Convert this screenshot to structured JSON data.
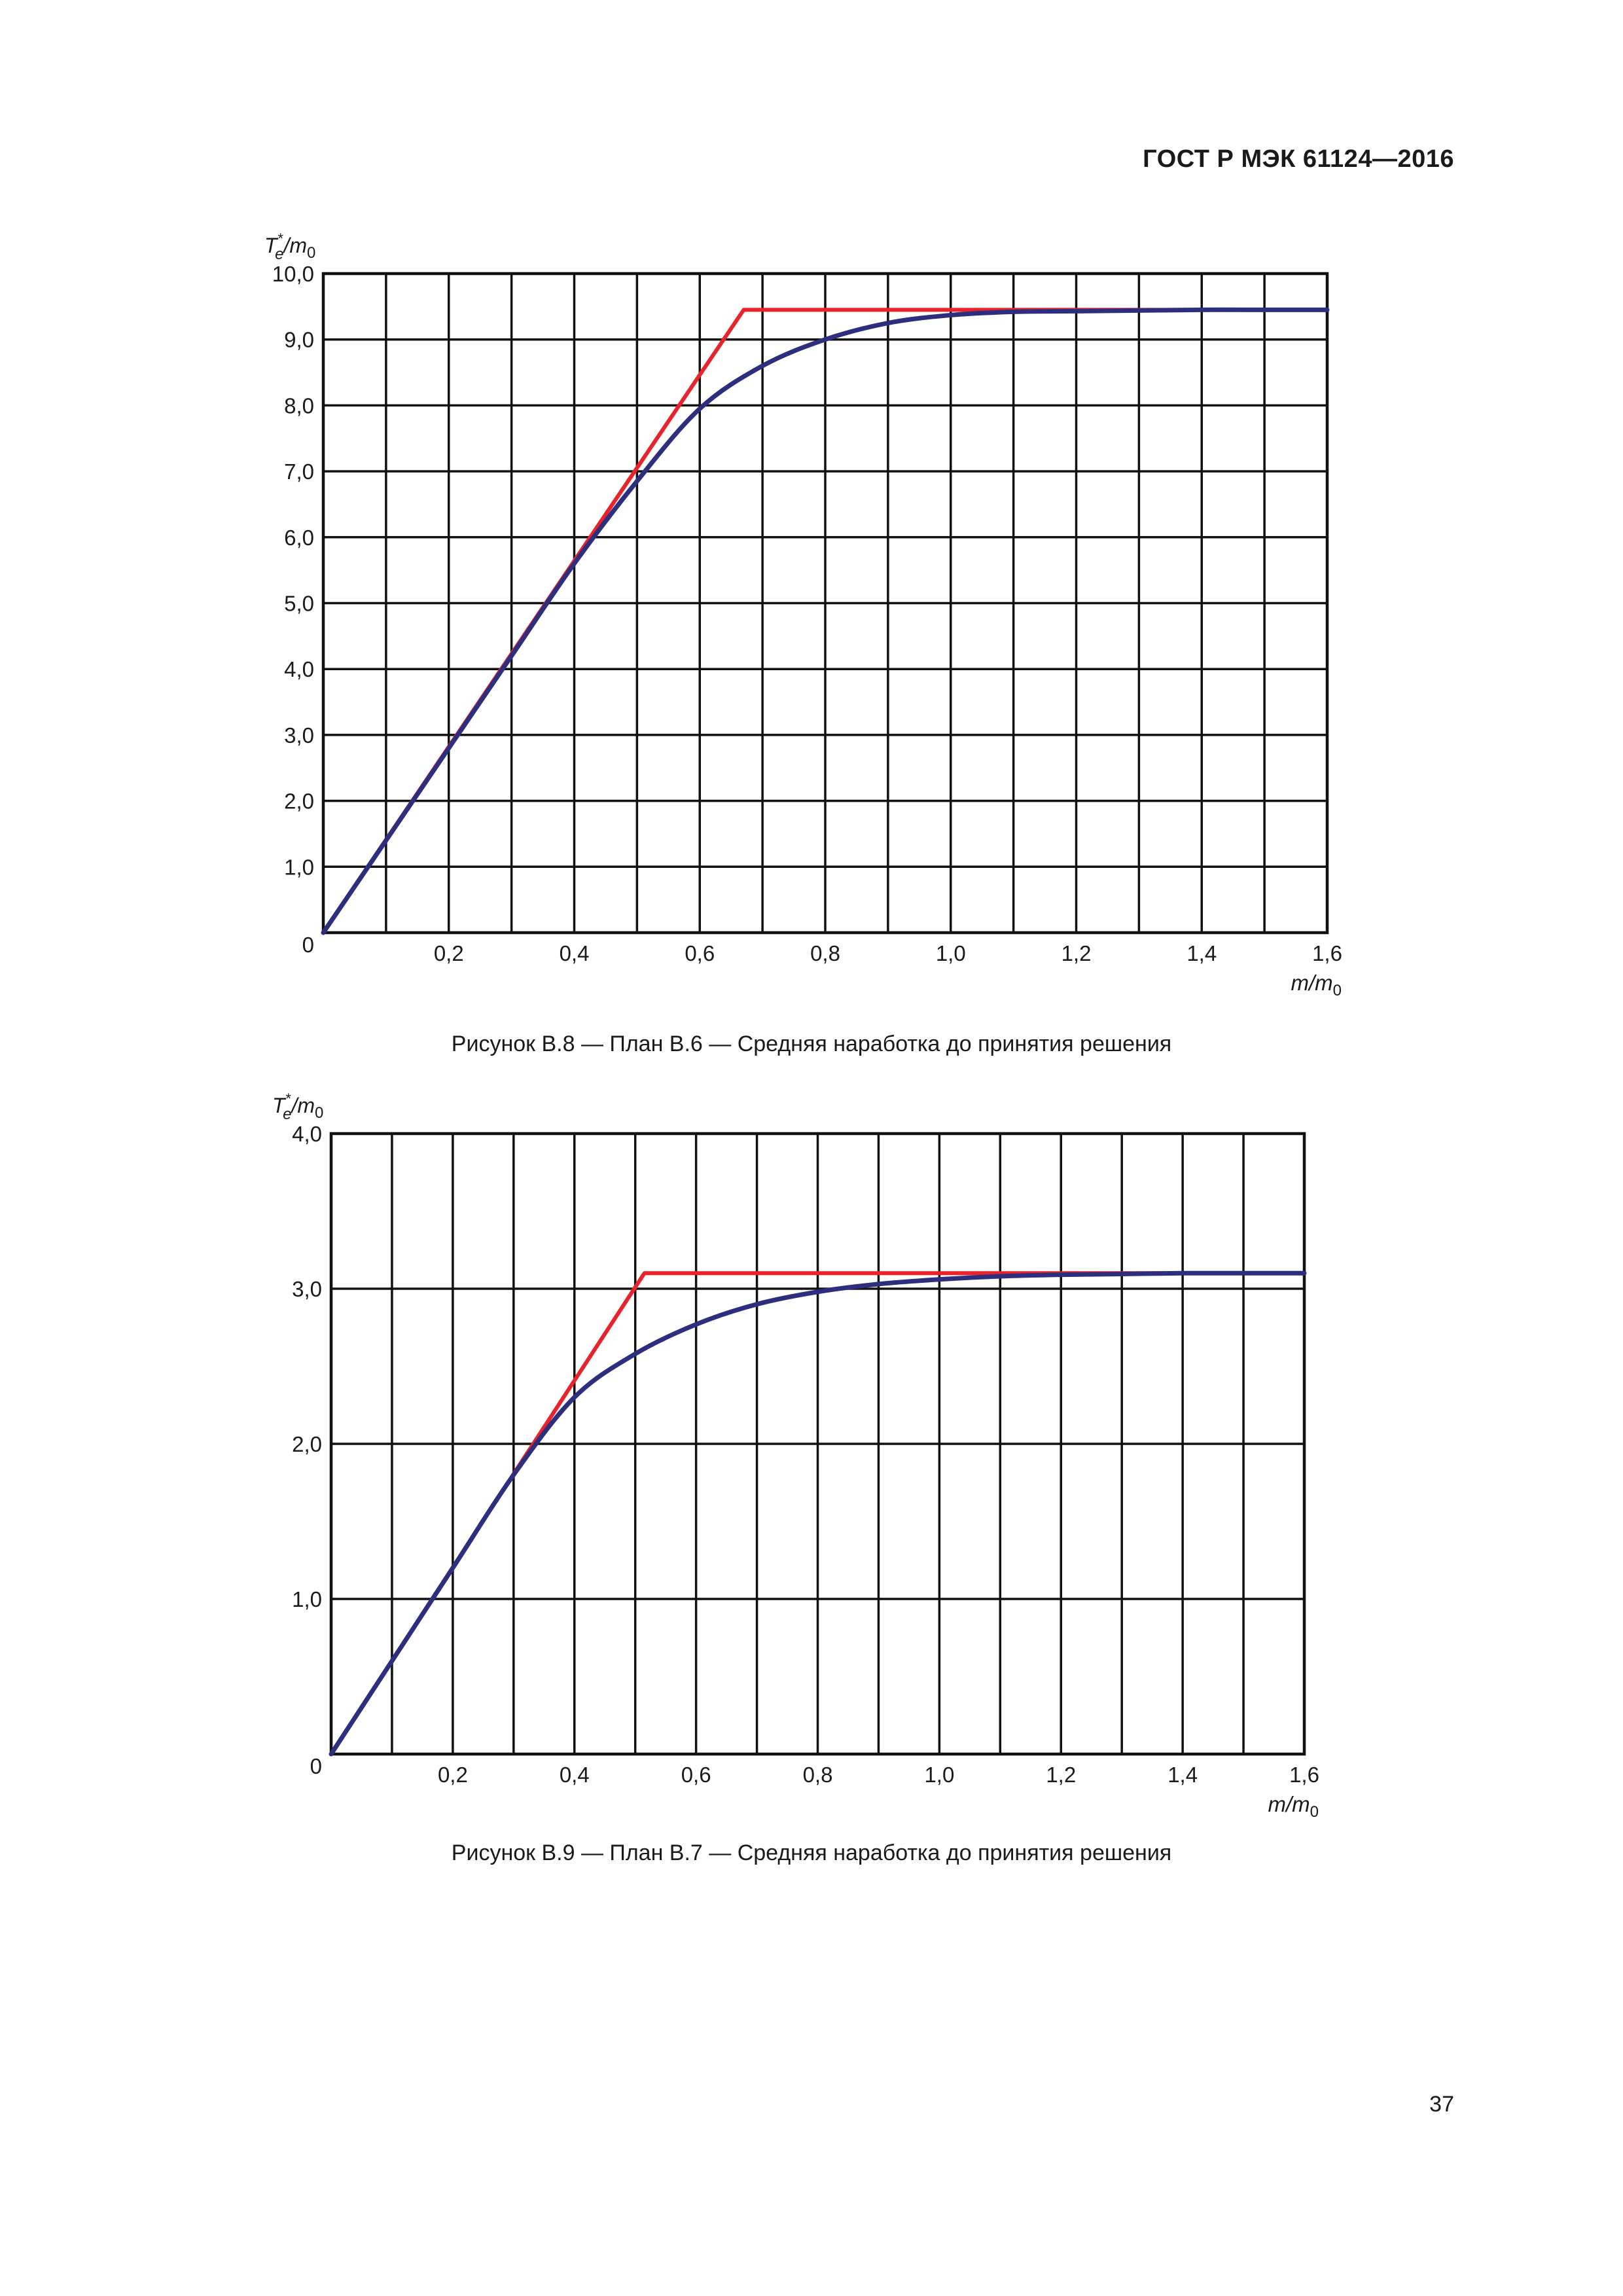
{
  "document": {
    "header": "ГОСТ Р МЭК 61124—2016",
    "page_number": "37"
  },
  "chart_data": [
    {
      "type": "line",
      "caption": "Рисунок В.8 — План В.6 — Средняя наработка до принятия решения",
      "ylabel": {
        "T": "T",
        "sup": "*",
        "sub": "e",
        "slash": "/m",
        "sub2": "0"
      },
      "xlabel": {
        "main": "m/m",
        "sub": "0"
      },
      "xlim": [
        0,
        1.6
      ],
      "ylim": [
        0,
        10
      ],
      "xticks": [
        0.2,
        0.4,
        0.6,
        0.8,
        1.0,
        1.2,
        1.4,
        1.6
      ],
      "xtick_labels": [
        "0,2",
        "0,4",
        "0,6",
        "0,8",
        "1,0",
        "1,2",
        "1,4",
        "1,6"
      ],
      "yticks": [
        1,
        2,
        3,
        4,
        5,
        6,
        7,
        8,
        9,
        10
      ],
      "ytick_labels": [
        "1,0",
        "2,0",
        "3,0",
        "4,0",
        "5,0",
        "6,0",
        "7,0",
        "8,0",
        "9,0",
        "10,0"
      ],
      "origin_label": "0",
      "grid": {
        "x_step": 0.1,
        "y_step": 1.0
      },
      "series": [
        {
          "color": "#e8232b",
          "x": [
            0,
            0.67,
            1.6
          ],
          "y": [
            0,
            9.45,
            9.45
          ]
        },
        {
          "color": "#2e2e7e",
          "x": [
            0,
            0.1,
            0.2,
            0.3,
            0.4,
            0.5,
            0.6,
            0.7,
            0.8,
            0.9,
            1.0,
            1.1,
            1.2,
            1.3,
            1.4,
            1.5,
            1.6
          ],
          "y": [
            0,
            1.4,
            2.8,
            4.2,
            5.6,
            6.85,
            7.95,
            8.6,
            9.0,
            9.25,
            9.37,
            9.42,
            9.43,
            9.44,
            9.45,
            9.45,
            9.45
          ]
        }
      ]
    },
    {
      "type": "line",
      "caption": "Рисунок В.9 — План В.7 — Средняя наработка до принятия решения",
      "ylabel": {
        "T": "T",
        "sup": "*",
        "sub": "e",
        "slash": "/m",
        "sub2": "0"
      },
      "xlabel": {
        "main": "m/m",
        "sub": "0"
      },
      "xlim": [
        0,
        1.6
      ],
      "ylim": [
        0,
        4
      ],
      "xticks": [
        0.2,
        0.4,
        0.6,
        0.8,
        1.0,
        1.2,
        1.4,
        1.6
      ],
      "xtick_labels": [
        "0,2",
        "0,4",
        "0,6",
        "0,8",
        "1,0",
        "1,2",
        "1,4",
        "1,6"
      ],
      "yticks": [
        1,
        2,
        3,
        4
      ],
      "ytick_labels": [
        "1,0",
        "2,0",
        "3,0",
        "4,0"
      ],
      "origin_label": "0",
      "grid": {
        "x_step": 0.1,
        "y_step": 1.0
      },
      "series": [
        {
          "color": "#e8232b",
          "x": [
            0,
            0.515,
            1.6
          ],
          "y": [
            0,
            3.1,
            3.1
          ]
        },
        {
          "color": "#2e2e7e",
          "x": [
            0,
            0.1,
            0.2,
            0.3,
            0.4,
            0.5,
            0.6,
            0.7,
            0.8,
            0.9,
            1.0,
            1.1,
            1.2,
            1.3,
            1.4,
            1.5,
            1.6
          ],
          "y": [
            0,
            0.6,
            1.2,
            1.8,
            2.3,
            2.58,
            2.77,
            2.9,
            2.98,
            3.03,
            3.06,
            3.08,
            3.09,
            3.095,
            3.1,
            3.1,
            3.1
          ]
        }
      ]
    }
  ]
}
